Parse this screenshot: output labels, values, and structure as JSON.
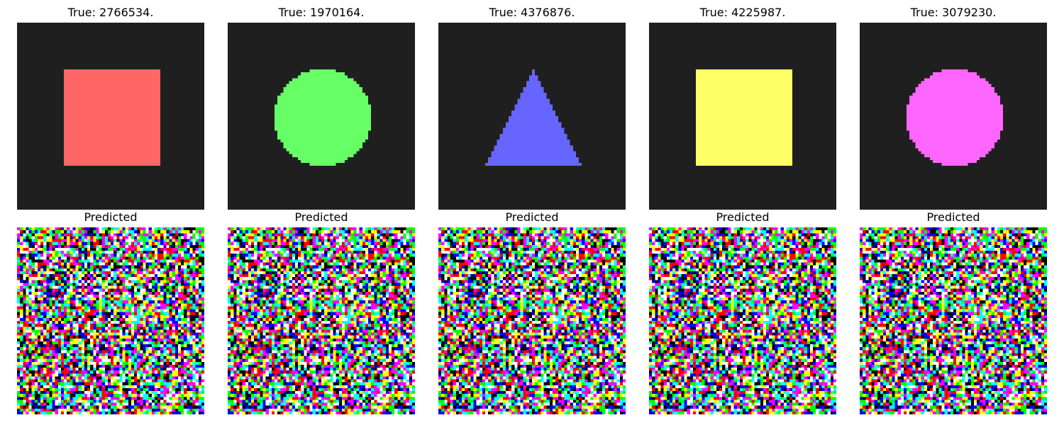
{
  "colors": {
    "page_background": "#ffffff",
    "true_background": "#1f1f1f",
    "noise_palette": [
      "#ff0000",
      "#00ff00",
      "#0000ff",
      "#ffff00",
      "#ff00ff",
      "#00ffff",
      "#000000",
      "#ffffff"
    ]
  },
  "panels": [
    {
      "true_title": "True: 2766534.",
      "predicted_title": "Predicted",
      "shape": "square",
      "color": "#ff6666"
    },
    {
      "true_title": "True: 1970164.",
      "predicted_title": "Predicted",
      "shape": "circle",
      "color": "#66ff66"
    },
    {
      "true_title": "True: 4376876.",
      "predicted_title": "Predicted",
      "shape": "triangle",
      "color": "#6666ff"
    },
    {
      "true_title": "True: 4225987.",
      "predicted_title": "Predicted",
      "shape": "square",
      "color": "#ffff66"
    },
    {
      "true_title": "True: 3079230.",
      "predicted_title": "Predicted",
      "shape": "circle",
      "color": "#ff66ff"
    }
  ]
}
